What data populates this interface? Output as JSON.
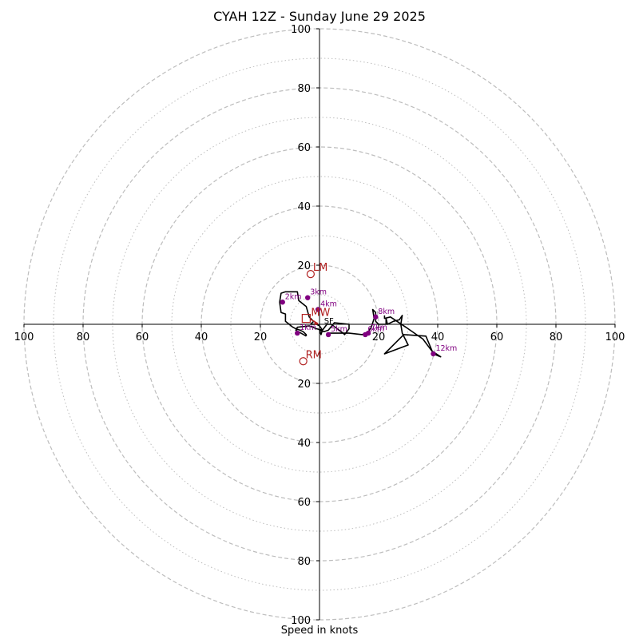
{
  "chart_data": {
    "type": "hodograph",
    "title": "CYAH 12Z - Sunday June 29 2025",
    "xlabel": "Speed in knots",
    "range": [
      -100,
      100
    ],
    "rings_major": [
      20,
      40,
      60,
      80,
      100
    ],
    "rings_minor": [
      10,
      30,
      50,
      70,
      90
    ],
    "tick_labels": [
      "100",
      "80",
      "60",
      "40",
      "20",
      "20",
      "40",
      "60",
      "80",
      "100"
    ],
    "y_tick_labels_top": [
      "20",
      "40",
      "60",
      "80",
      "100"
    ],
    "y_tick_labels_bottom": [
      "20",
      "40",
      "60",
      "80",
      "100"
    ],
    "hodograph_line": [
      [
        -4.5,
        -4
      ],
      [
        -8,
        -2
      ],
      [
        -7.5,
        -1
      ],
      [
        -3.5,
        -0.5
      ],
      [
        -1,
        -1.5
      ],
      [
        1,
        -2
      ],
      [
        2.5,
        0
      ],
      [
        4,
        0
      ],
      [
        8,
        -3
      ],
      [
        8.5,
        -3.5
      ],
      [
        10,
        -1.5
      ],
      [
        10,
        0
      ],
      [
        5,
        0.5
      ],
      [
        3,
        -2
      ],
      [
        1.5,
        -2.5
      ],
      [
        0,
        -2
      ],
      [
        0.5,
        -3.5
      ],
      [
        1,
        -2
      ],
      [
        0,
        -0.5
      ],
      [
        -1,
        0
      ],
      [
        -3,
        0
      ],
      [
        -2,
        1
      ],
      [
        -3.5,
        2.5
      ],
      [
        -4.5,
        6
      ],
      [
        -7,
        8
      ],
      [
        -7.5,
        11
      ],
      [
        -11.5,
        11
      ],
      [
        -13,
        10.5
      ],
      [
        -13.5,
        7.5
      ],
      [
        -13,
        4
      ],
      [
        -11.5,
        3.5
      ],
      [
        -11.5,
        1
      ],
      [
        -9,
        -1
      ],
      [
        -8,
        -1.5
      ],
      [
        -6.5,
        -2
      ],
      [
        -5.5,
        -2.5
      ],
      [
        -4.5,
        -3.5
      ],
      [
        -4.5,
        -4
      ]
    ],
    "hodograph_line_upper": [
      [
        3,
        -3
      ],
      [
        10,
        -3
      ],
      [
        14.5,
        -3.5
      ],
      [
        15.5,
        -3
      ],
      [
        16.5,
        -2.5
      ],
      [
        17.5,
        -1
      ],
      [
        18.5,
        2
      ],
      [
        18,
        5
      ],
      [
        19,
        4
      ],
      [
        19,
        1
      ],
      [
        20,
        0
      ],
      [
        22.5,
        0
      ],
      [
        22.5,
        2
      ],
      [
        23,
        0
      ],
      [
        25,
        1
      ],
      [
        27,
        1.5
      ],
      [
        28,
        3
      ],
      [
        27.5,
        0
      ],
      [
        28,
        -3
      ],
      [
        30,
        -7
      ],
      [
        22,
        -10
      ],
      [
        26,
        -6
      ],
      [
        28,
        -4
      ],
      [
        28.5,
        -3.5
      ],
      [
        36,
        -4
      ],
      [
        38.5,
        -10
      ],
      [
        41,
        -11
      ],
      [
        38,
        -9
      ],
      [
        35,
        -5
      ],
      [
        30,
        -1.5
      ],
      [
        24,
        2.5
      ],
      [
        22,
        2
      ],
      [
        22,
        3
      ]
    ],
    "points": [
      {
        "label": "1km",
        "u": -7.5,
        "v": -3
      },
      {
        "label": "2km",
        "u": -12.5,
        "v": 7.5
      },
      {
        "label": "3km",
        "u": -4,
        "v": 9
      },
      {
        "label": "4km",
        "u": -0.5,
        "v": 5
      },
      {
        "label": "5km",
        "u": 3,
        "v": -3.5
      },
      {
        "label": "6km",
        "u": 15.5,
        "v": -3.5
      },
      {
        "label": "7km",
        "u": 16.5,
        "v": -3
      },
      {
        "label": "8km",
        "u": 19,
        "v": 2.5
      },
      {
        "label": "12km",
        "u": 38.5,
        "v": -10
      }
    ],
    "markers": [
      {
        "label": "LM",
        "u": -3,
        "v": 17,
        "shape": "circle"
      },
      {
        "label": "RM",
        "u": -5.5,
        "v": -12.5,
        "shape": "circle"
      },
      {
        "label": "MW",
        "u": -4.5,
        "v": 2,
        "shape": "square"
      },
      {
        "label": "SF",
        "u": 1,
        "v": 0,
        "shape": "arrow"
      }
    ],
    "colors": {
      "ring": "#bdbdbd",
      "axis": "#000000",
      "line": "#000000",
      "point": "#800080",
      "marker": "#b22222"
    }
  }
}
